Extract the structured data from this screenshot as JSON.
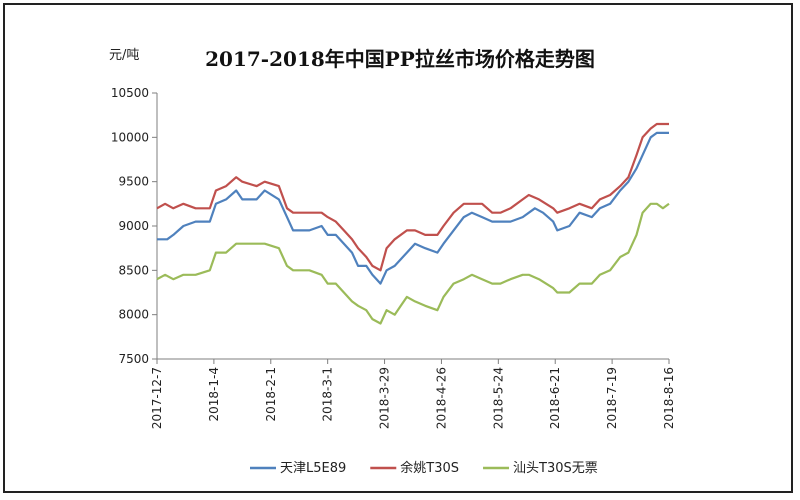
{
  "chart_data": {
    "type": "line",
    "title": "2017-2018年中国PP拉丝市场价格走势图",
    "ylabel": "元/吨",
    "ylim": [
      7500,
      10500
    ],
    "yticks": [
      7500,
      8000,
      8500,
      9000,
      9500,
      10000,
      10500
    ],
    "x_start": "2017-12-7",
    "x_end": "2018-8-16",
    "x_tick_labels": [
      "2017-12-7",
      "2018-1-4",
      "2018-2-1",
      "2018-3-1",
      "2018-3-29",
      "2018-4-26",
      "2018-5-24",
      "2018-6-21",
      "2018-7-19",
      "2018-8-16"
    ],
    "legend_position": "bottom",
    "grid": false,
    "series": [
      {
        "name": "天津L5E89",
        "color": "#4f81bd",
        "points": [
          [
            "2017-12-7",
            8850
          ],
          [
            "2017-12-12",
            8850
          ],
          [
            "2017-12-15",
            8900
          ],
          [
            "2017-12-20",
            9000
          ],
          [
            "2017-12-26",
            9050
          ],
          [
            "2018-1-2",
            9050
          ],
          [
            "2018-1-5",
            9250
          ],
          [
            "2018-1-10",
            9300
          ],
          [
            "2018-1-15",
            9400
          ],
          [
            "2018-1-18",
            9300
          ],
          [
            "2018-1-25",
            9300
          ],
          [
            "2018-1-29",
            9400
          ],
          [
            "2018-2-5",
            9300
          ],
          [
            "2018-2-9",
            9100
          ],
          [
            "2018-2-12",
            8950
          ],
          [
            "2018-2-20",
            8950
          ],
          [
            "2018-2-26",
            9000
          ],
          [
            "2018-3-1",
            8900
          ],
          [
            "2018-3-5",
            8900
          ],
          [
            "2018-3-9",
            8800
          ],
          [
            "2018-3-13",
            8700
          ],
          [
            "2018-3-16",
            8550
          ],
          [
            "2018-3-20",
            8550
          ],
          [
            "2018-3-23",
            8450
          ],
          [
            "2018-3-27",
            8350
          ],
          [
            "2018-3-30",
            8500
          ],
          [
            "2018-4-3",
            8550
          ],
          [
            "2018-4-9",
            8700
          ],
          [
            "2018-4-13",
            8800
          ],
          [
            "2018-4-18",
            8750
          ],
          [
            "2018-4-24",
            8700
          ],
          [
            "2018-4-27",
            8800
          ],
          [
            "2018-5-2",
            8950
          ],
          [
            "2018-5-7",
            9100
          ],
          [
            "2018-5-11",
            9150
          ],
          [
            "2018-5-16",
            9100
          ],
          [
            "2018-5-21",
            9050
          ],
          [
            "2018-5-25",
            9050
          ],
          [
            "2018-5-30",
            9050
          ],
          [
            "2018-6-5",
            9100
          ],
          [
            "2018-6-11",
            9200
          ],
          [
            "2018-6-15",
            9150
          ],
          [
            "2018-6-20",
            9050
          ],
          [
            "2018-6-22",
            8950
          ],
          [
            "2018-6-28",
            9000
          ],
          [
            "2018-7-3",
            9150
          ],
          [
            "2018-7-9",
            9100
          ],
          [
            "2018-7-13",
            9200
          ],
          [
            "2018-7-18",
            9250
          ],
          [
            "2018-7-23",
            9400
          ],
          [
            "2018-7-27",
            9500
          ],
          [
            "2018-7-31",
            9650
          ],
          [
            "2018-8-3",
            9800
          ],
          [
            "2018-8-7",
            10000
          ],
          [
            "2018-8-10",
            10050
          ],
          [
            "2018-8-16",
            10050
          ]
        ]
      },
      {
        "name": "余姚T30S",
        "color": "#c0504d",
        "points": [
          [
            "2017-12-7",
            9200
          ],
          [
            "2017-12-11",
            9250
          ],
          [
            "2017-12-15",
            9200
          ],
          [
            "2017-12-20",
            9250
          ],
          [
            "2017-12-26",
            9200
          ],
          [
            "2018-1-2",
            9200
          ],
          [
            "2018-1-5",
            9400
          ],
          [
            "2018-1-10",
            9450
          ],
          [
            "2018-1-15",
            9550
          ],
          [
            "2018-1-18",
            9500
          ],
          [
            "2018-1-25",
            9450
          ],
          [
            "2018-1-29",
            9500
          ],
          [
            "2018-2-5",
            9450
          ],
          [
            "2018-2-9",
            9200
          ],
          [
            "2018-2-12",
            9150
          ],
          [
            "2018-2-20",
            9150
          ],
          [
            "2018-2-26",
            9150
          ],
          [
            "2018-3-1",
            9100
          ],
          [
            "2018-3-5",
            9050
          ],
          [
            "2018-3-9",
            8950
          ],
          [
            "2018-3-13",
            8850
          ],
          [
            "2018-3-16",
            8750
          ],
          [
            "2018-3-20",
            8650
          ],
          [
            "2018-3-23",
            8550
          ],
          [
            "2018-3-27",
            8500
          ],
          [
            "2018-3-30",
            8750
          ],
          [
            "2018-4-3",
            8850
          ],
          [
            "2018-4-9",
            8950
          ],
          [
            "2018-4-13",
            8950
          ],
          [
            "2018-4-18",
            8900
          ],
          [
            "2018-4-24",
            8900
          ],
          [
            "2018-4-27",
            9000
          ],
          [
            "2018-5-2",
            9150
          ],
          [
            "2018-5-7",
            9250
          ],
          [
            "2018-5-11",
            9250
          ],
          [
            "2018-5-16",
            9250
          ],
          [
            "2018-5-21",
            9150
          ],
          [
            "2018-5-25",
            9150
          ],
          [
            "2018-5-30",
            9200
          ],
          [
            "2018-6-5",
            9300
          ],
          [
            "2018-6-8",
            9350
          ],
          [
            "2018-6-13",
            9300
          ],
          [
            "2018-6-20",
            9200
          ],
          [
            "2018-6-22",
            9150
          ],
          [
            "2018-6-28",
            9200
          ],
          [
            "2018-7-3",
            9250
          ],
          [
            "2018-7-9",
            9200
          ],
          [
            "2018-7-13",
            9300
          ],
          [
            "2018-7-18",
            9350
          ],
          [
            "2018-7-23",
            9450
          ],
          [
            "2018-7-27",
            9550
          ],
          [
            "2018-7-31",
            9800
          ],
          [
            "2018-8-3",
            10000
          ],
          [
            "2018-8-7",
            10100
          ],
          [
            "2018-8-10",
            10150
          ],
          [
            "2018-8-16",
            10150
          ]
        ]
      },
      {
        "name": "汕头T30S无票",
        "color": "#9bbb59",
        "points": [
          [
            "2017-12-7",
            8400
          ],
          [
            "2017-12-11",
            8450
          ],
          [
            "2017-12-15",
            8400
          ],
          [
            "2017-12-20",
            8450
          ],
          [
            "2017-12-26",
            8450
          ],
          [
            "2018-1-2",
            8500
          ],
          [
            "2018-1-5",
            8700
          ],
          [
            "2018-1-10",
            8700
          ],
          [
            "2018-1-15",
            8800
          ],
          [
            "2018-1-18",
            8800
          ],
          [
            "2018-1-25",
            8800
          ],
          [
            "2018-1-29",
            8800
          ],
          [
            "2018-2-5",
            8750
          ],
          [
            "2018-2-9",
            8550
          ],
          [
            "2018-2-12",
            8500
          ],
          [
            "2018-2-20",
            8500
          ],
          [
            "2018-2-26",
            8450
          ],
          [
            "2018-3-1",
            8350
          ],
          [
            "2018-3-5",
            8350
          ],
          [
            "2018-3-9",
            8250
          ],
          [
            "2018-3-13",
            8150
          ],
          [
            "2018-3-16",
            8100
          ],
          [
            "2018-3-20",
            8050
          ],
          [
            "2018-3-23",
            7950
          ],
          [
            "2018-3-27",
            7900
          ],
          [
            "2018-3-30",
            8050
          ],
          [
            "2018-4-3",
            8000
          ],
          [
            "2018-4-6",
            8100
          ],
          [
            "2018-4-9",
            8200
          ],
          [
            "2018-4-13",
            8150
          ],
          [
            "2018-4-18",
            8100
          ],
          [
            "2018-4-24",
            8050
          ],
          [
            "2018-4-27",
            8200
          ],
          [
            "2018-5-2",
            8350
          ],
          [
            "2018-5-7",
            8400
          ],
          [
            "2018-5-11",
            8450
          ],
          [
            "2018-5-16",
            8400
          ],
          [
            "2018-5-21",
            8350
          ],
          [
            "2018-5-25",
            8350
          ],
          [
            "2018-5-30",
            8400
          ],
          [
            "2018-6-5",
            8450
          ],
          [
            "2018-6-8",
            8450
          ],
          [
            "2018-6-13",
            8400
          ],
          [
            "2018-6-20",
            8300
          ],
          [
            "2018-6-22",
            8250
          ],
          [
            "2018-6-28",
            8250
          ],
          [
            "2018-7-3",
            8350
          ],
          [
            "2018-7-9",
            8350
          ],
          [
            "2018-7-13",
            8450
          ],
          [
            "2018-7-18",
            8500
          ],
          [
            "2018-7-23",
            8650
          ],
          [
            "2018-7-27",
            8700
          ],
          [
            "2018-7-31",
            8900
          ],
          [
            "2018-8-3",
            9150
          ],
          [
            "2018-8-7",
            9250
          ],
          [
            "2018-8-10",
            9250
          ],
          [
            "2018-8-13",
            9200
          ],
          [
            "2018-8-16",
            9250
          ]
        ]
      }
    ]
  }
}
